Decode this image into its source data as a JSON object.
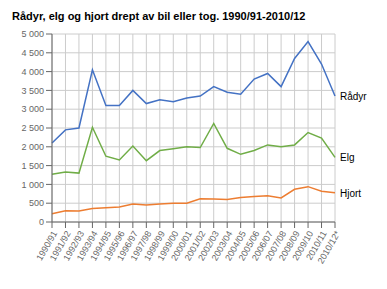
{
  "chart_data": {
    "type": "line",
    "title": "Rådyr, elg og hjort drept av bil eller tog. 1990/91-2010/12",
    "categories": [
      "1990/91",
      "1991/92",
      "1992/93",
      "1993/94",
      "1994/95",
      "1995/96",
      "1996/97",
      "1997/98",
      "1998/99",
      "1999/00",
      "2000/01",
      "2001/02",
      "2002/03",
      "2003/04",
      "2004/05",
      "2005/06",
      "2006/07",
      "2007/08",
      "2008/09",
      "2009/10",
      "2010/11",
      "2010/12*"
    ],
    "series": [
      {
        "name": "Rådyr",
        "color": "#4472C4",
        "values": [
          2100,
          2450,
          2500,
          4050,
          3100,
          3100,
          3500,
          3150,
          3250,
          3200,
          3300,
          3350,
          3600,
          3450,
          3400,
          3800,
          3950,
          3600,
          4350,
          4800,
          4200,
          3350
        ]
      },
      {
        "name": "Elg",
        "color": "#70AD47",
        "values": [
          1270,
          1330,
          1300,
          2520,
          1750,
          1650,
          2020,
          1630,
          1900,
          1950,
          2000,
          1980,
          2620,
          1960,
          1800,
          1900,
          2050,
          2000,
          2050,
          2380,
          2230,
          1720
        ]
      },
      {
        "name": "Hjort",
        "color": "#ED7D31",
        "values": [
          220,
          300,
          290,
          360,
          380,
          400,
          480,
          450,
          480,
          500,
          500,
          620,
          610,
          600,
          650,
          680,
          700,
          640,
          870,
          940,
          820,
          780
        ]
      }
    ],
    "ylim": [
      0,
      5000
    ],
    "yticks": [
      0,
      500,
      {
        "value": 1000,
        "label": "1 000"
      },
      {
        "value": 1500,
        "label": "1 500"
      },
      {
        "value": 2000,
        "label": "2 000"
      },
      {
        "value": 2500,
        "label": "2 500"
      },
      {
        "value": 3000,
        "label": "3 000"
      },
      {
        "value": 3500,
        "label": "3 500"
      },
      {
        "value": 4000,
        "label": "4 000"
      },
      {
        "value": 4500,
        "label": "4 500"
      },
      {
        "value": 5000,
        "label": "5 000"
      }
    ],
    "grid": true
  }
}
